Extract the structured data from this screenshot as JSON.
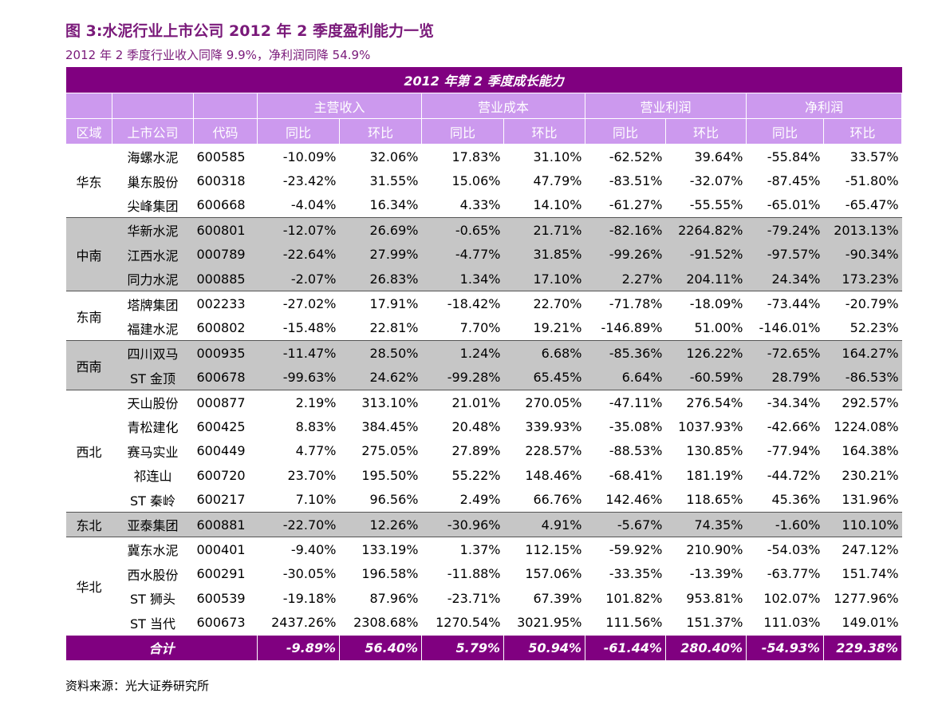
{
  "header": {
    "title": "图 3:水泥行业上市公司 2012 年 2 季度盈利能力一览",
    "subtitle": "2012 年 2 季度行业收入同降 9.9%，净利润同降 54.9%"
  },
  "table": {
    "caption": "2012 年第 2 季度成长能力",
    "groups": [
      "主营收入",
      "营业成本",
      "营业利润",
      "净利润"
    ],
    "columns": [
      "区域",
      "上市公司",
      "代码",
      "同比",
      "环比",
      "同比",
      "环比",
      "同比",
      "环比",
      "同比",
      "环比"
    ],
    "regions": [
      {
        "name": "华东",
        "rows": [
          [
            "海螺水泥",
            "600585",
            "-10.09%",
            "32.06%",
            "17.83%",
            "31.10%",
            "-62.52%",
            "39.64%",
            "-55.84%",
            "33.57%"
          ],
          [
            "巢东股份",
            "600318",
            "-23.42%",
            "31.55%",
            "15.06%",
            "47.79%",
            "-83.51%",
            "-32.07%",
            "-87.45%",
            "-51.80%"
          ],
          [
            "尖峰集团",
            "600668",
            "-4.04%",
            "16.34%",
            "4.33%",
            "14.10%",
            "-61.27%",
            "-55.55%",
            "-65.01%",
            "-65.47%"
          ]
        ]
      },
      {
        "name": "中南",
        "rows": [
          [
            "华新水泥",
            "600801",
            "-12.07%",
            "26.69%",
            "-0.65%",
            "21.71%",
            "-82.16%",
            "2264.82%",
            "-79.24%",
            "2013.13%"
          ],
          [
            "江西水泥",
            "000789",
            "-22.64%",
            "27.99%",
            "-4.77%",
            "31.85%",
            "-99.26%",
            "-91.52%",
            "-97.57%",
            "-90.34%"
          ],
          [
            "同力水泥",
            "000885",
            "-2.07%",
            "26.83%",
            "1.34%",
            "17.10%",
            "2.27%",
            "204.11%",
            "24.34%",
            "173.23%"
          ]
        ]
      },
      {
        "name": "东南",
        "rows": [
          [
            "塔牌集团",
            "002233",
            "-27.02%",
            "17.91%",
            "-18.42%",
            "22.70%",
            "-71.78%",
            "-18.09%",
            "-73.44%",
            "-20.79%"
          ],
          [
            "福建水泥",
            "600802",
            "-15.48%",
            "22.81%",
            "7.70%",
            "19.21%",
            "-146.89%",
            "51.00%",
            "-146.01%",
            "52.23%"
          ]
        ]
      },
      {
        "name": "西南",
        "rows": [
          [
            "四川双马",
            "000935",
            "-11.47%",
            "28.50%",
            "1.24%",
            "6.68%",
            "-85.36%",
            "126.22%",
            "-72.65%",
            "164.27%"
          ],
          [
            "ST 金顶",
            "600678",
            "-99.63%",
            "24.62%",
            "-99.28%",
            "65.45%",
            "6.64%",
            "-60.59%",
            "28.79%",
            "-86.53%"
          ]
        ]
      },
      {
        "name": "西北",
        "rows": [
          [
            "天山股份",
            "000877",
            "2.19%",
            "313.10%",
            "21.01%",
            "270.05%",
            "-47.11%",
            "276.54%",
            "-34.34%",
            "292.57%"
          ],
          [
            "青松建化",
            "600425",
            "8.83%",
            "384.45%",
            "20.48%",
            "339.93%",
            "-35.08%",
            "1037.93%",
            "-42.66%",
            "1224.08%"
          ],
          [
            "赛马实业",
            "600449",
            "4.77%",
            "275.05%",
            "27.89%",
            "228.57%",
            "-88.53%",
            "130.85%",
            "-77.94%",
            "164.38%"
          ],
          [
            "祁连山",
            "600720",
            "23.70%",
            "195.50%",
            "55.22%",
            "148.46%",
            "-68.41%",
            "181.19%",
            "-44.72%",
            "230.21%"
          ],
          [
            "ST 秦岭",
            "600217",
            "7.10%",
            "96.56%",
            "2.49%",
            "66.76%",
            "142.46%",
            "118.65%",
            "45.36%",
            "131.96%"
          ]
        ]
      },
      {
        "name": "东北",
        "rows": [
          [
            "亚泰集团",
            "600881",
            "-22.70%",
            "12.26%",
            "-30.96%",
            "4.91%",
            "-5.67%",
            "74.35%",
            "-1.60%",
            "110.10%"
          ]
        ]
      },
      {
        "name": "华北",
        "rows": [
          [
            "冀东水泥",
            "000401",
            "-9.40%",
            "133.19%",
            "1.37%",
            "112.15%",
            "-59.92%",
            "210.90%",
            "-54.03%",
            "247.12%"
          ],
          [
            "西水股份",
            "600291",
            "-30.05%",
            "196.58%",
            "-11.88%",
            "157.06%",
            "-33.35%",
            "-13.39%",
            "-63.77%",
            "151.74%"
          ],
          [
            "ST 狮头",
            "600539",
            "-19.18%",
            "87.96%",
            "-23.71%",
            "67.39%",
            "101.82%",
            "953.81%",
            "102.07%",
            "1277.96%"
          ],
          [
            "ST 当代",
            "600673",
            "2437.26%",
            "2308.68%",
            "1270.54%",
            "3021.95%",
            "111.56%",
            "151.37%",
            "111.03%",
            "149.01%"
          ]
        ]
      }
    ],
    "total": {
      "label": "合计",
      "values": [
        "-9.89%",
        "56.40%",
        "5.79%",
        "50.94%",
        "-61.44%",
        "280.40%",
        "-54.93%",
        "229.38%"
      ]
    }
  },
  "footer": {
    "source": "资料来源：光大证券研究所"
  }
}
